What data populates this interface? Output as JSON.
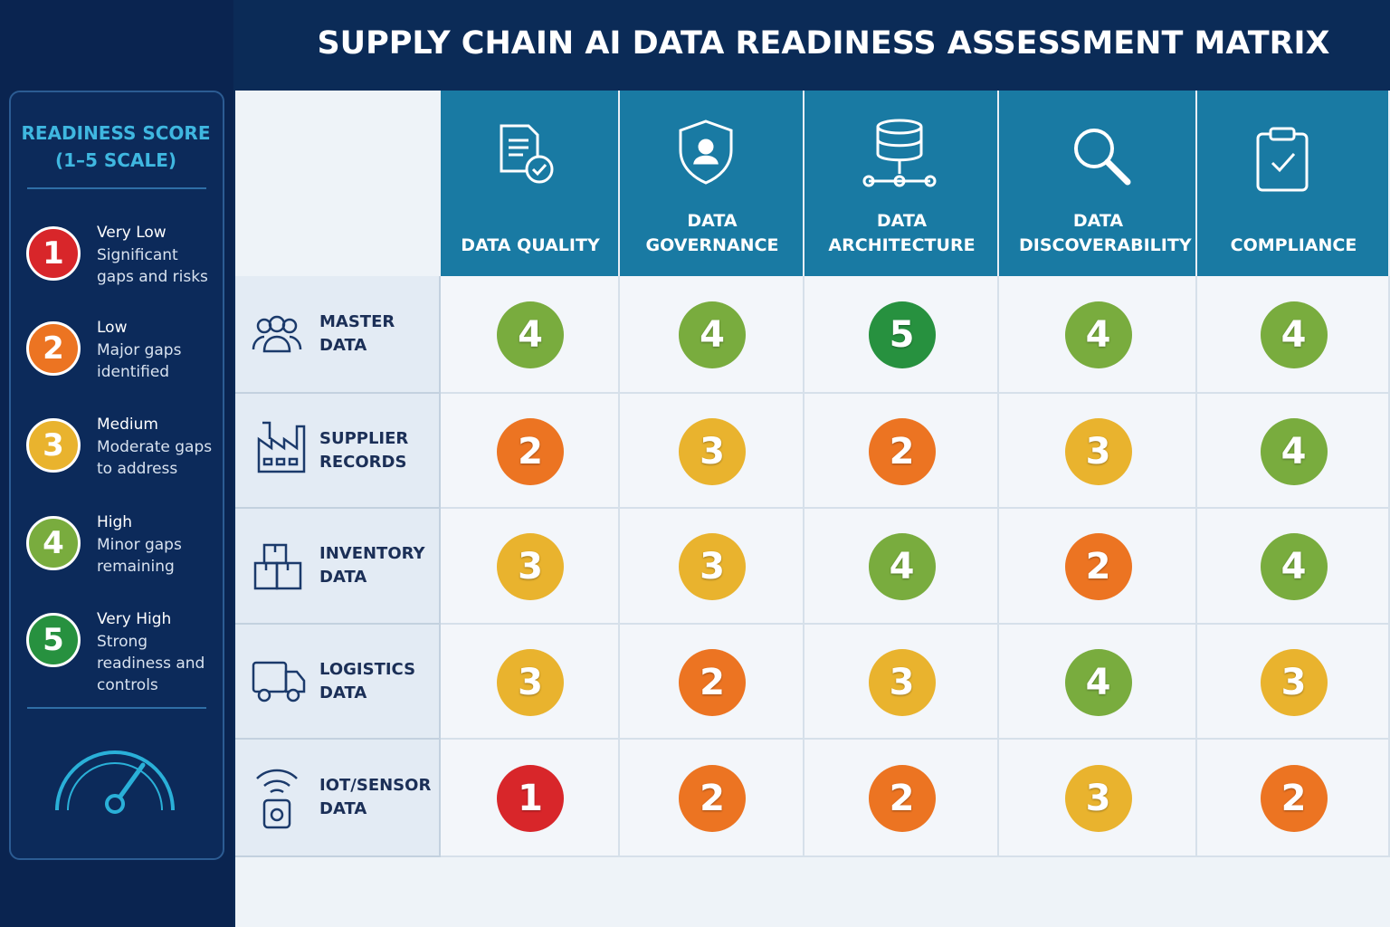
{
  "header": {
    "title": "SUPPLY CHAIN AI DATA READINESS ASSESSMENT MATRIX"
  },
  "legend": {
    "title": "READINESS SCORE (1–5 SCALE)",
    "items": [
      {
        "score": 1,
        "label": "Very Low",
        "description": "Significant gaps and risks",
        "color": "#d8262a"
      },
      {
        "score": 2,
        "label": "Low",
        "description": "Major gaps identified",
        "color": "#ec7422"
      },
      {
        "score": 3,
        "label": "Medium",
        "description": "Moderate gaps to address",
        "color": "#e9b32e"
      },
      {
        "score": 4,
        "label": "High",
        "description": "Minor gaps remaining",
        "color": "#79ac3e"
      },
      {
        "score": 5,
        "label": "Very High",
        "description": "Strong readiness and controls",
        "color": "#27913f"
      }
    ]
  },
  "table": {
    "columns": [
      "DATA QUALITY",
      "DATA GOVERNANCE",
      "DATA ARCHITECTURE",
      "DATA DISCOVERABILITY",
      "COMPLIANCE"
    ],
    "rows": [
      {
        "label": "MASTER DATA",
        "scores": [
          4,
          4,
          5,
          4,
          4
        ]
      },
      {
        "label": "SUPPLIER RECORDS",
        "scores": [
          2,
          3,
          2,
          3,
          4
        ]
      },
      {
        "label": "INVENTORY DATA",
        "scores": [
          3,
          3,
          4,
          2,
          4
        ]
      },
      {
        "label": "LOGISTICS DATA",
        "scores": [
          3,
          2,
          3,
          4,
          3
        ]
      },
      {
        "label": "IOT/SENSOR DATA",
        "scores": [
          1,
          2,
          2,
          3,
          2
        ]
      }
    ]
  }
}
